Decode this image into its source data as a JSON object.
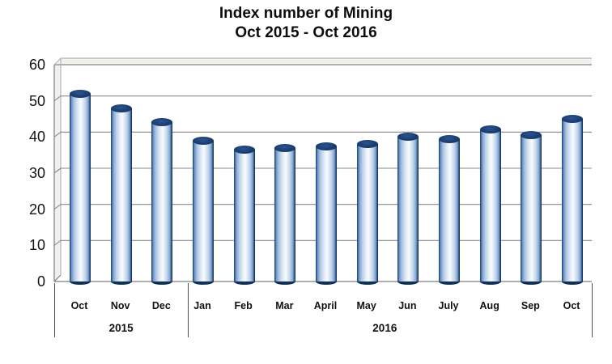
{
  "title": {
    "line1": "Index number of Mining",
    "line2": "Oct 2015 - Oct 2016"
  },
  "chart_data": {
    "type": "bar",
    "style": "3d-cylinder",
    "title": "Index number of Mining Oct 2015 - Oct 2016",
    "categories": [
      "Oct",
      "Nov",
      "Dec",
      "Jan",
      "Feb",
      "Mar",
      "April",
      "May",
      "Jun",
      "July",
      "Aug",
      "Sep",
      "Oct"
    ],
    "values": [
      52,
      48,
      44,
      39,
      36.5,
      37,
      37.5,
      38,
      40,
      39.5,
      42,
      40.5,
      45
    ],
    "group_labels": [
      {
        "label": "2015",
        "start_index": 0,
        "end_index": 2
      },
      {
        "label": "2016",
        "start_index": 3,
        "end_index": 12
      }
    ],
    "xlabel": "",
    "ylabel": "",
    "ylim": [
      0,
      60
    ],
    "yticks": [
      0,
      10,
      20,
      30,
      40,
      50,
      60
    ],
    "grid": true,
    "legend": false,
    "colors": {
      "cylinder_dark": "#122f56",
      "cylinder_mid": "#8fb0d6",
      "cylinder_light": "#f7fbfe",
      "gridline": "#8a8a8a",
      "frame": "#7f7f7f",
      "wall_fill": "#f1f0ec",
      "wall_edge": "#b5b5b3",
      "divider": "#4f4f4f",
      "text": "#111111"
    }
  }
}
